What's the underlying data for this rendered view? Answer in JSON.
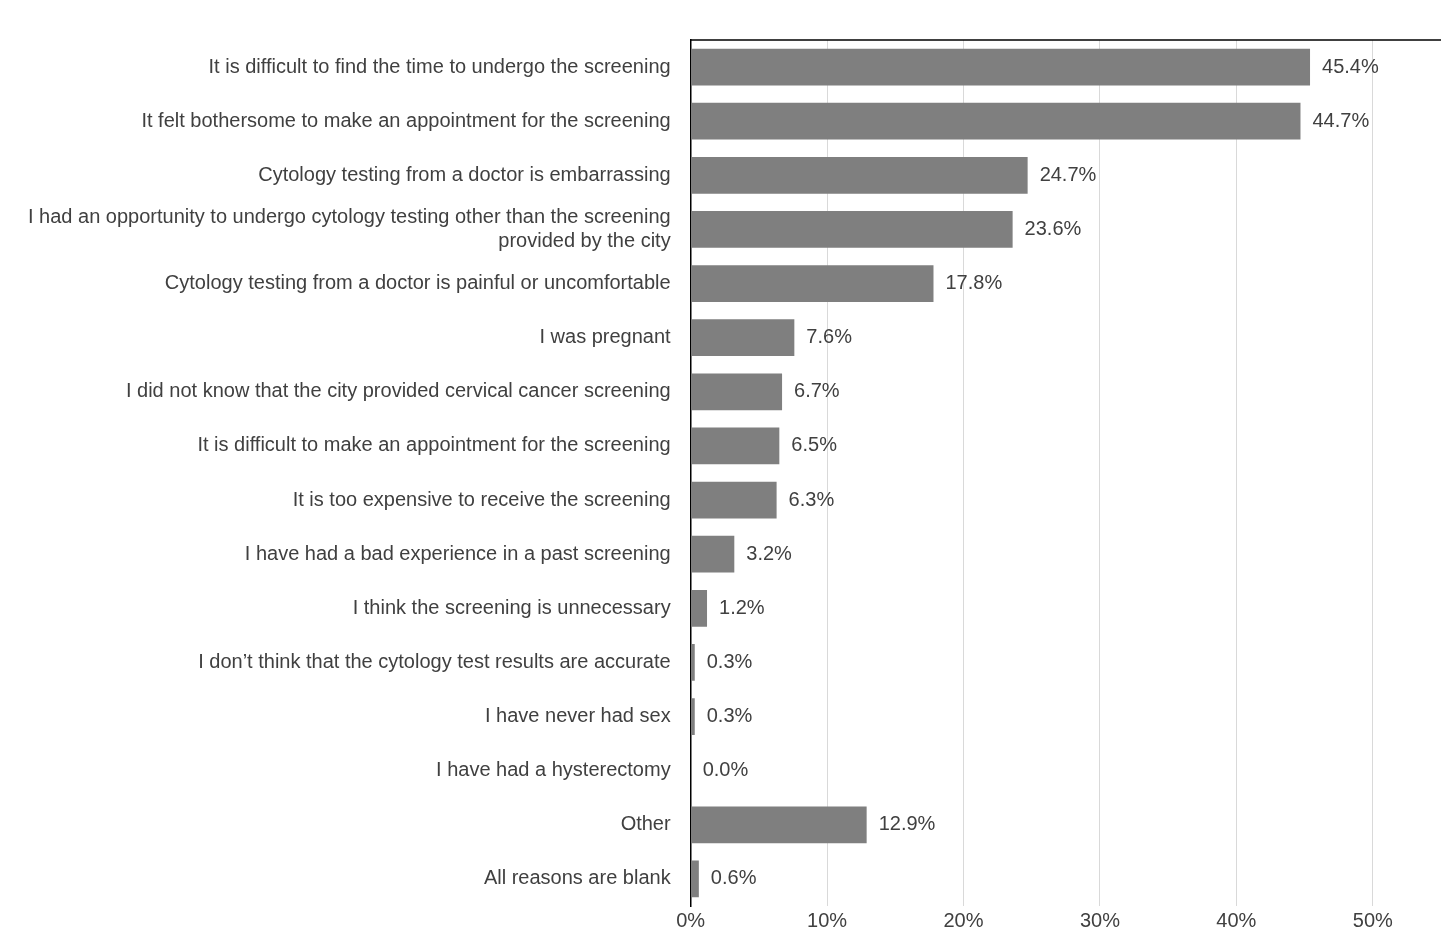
{
  "chart_data": {
    "type": "bar",
    "orientation": "horizontal",
    "categories": [
      "It is difficult to find the time to undergo the screening",
      "It felt bothersome to make an appointment for the screening",
      "Cytology testing from a doctor is embarrassing",
      "I had an opportunity to undergo cytology testing other than the screening provided by the city",
      "Cytology testing from a doctor is painful or uncomfortable",
      "I was pregnant",
      "I did not know that the city provided cervical cancer screening",
      "It is difficult to make an appointment for the screening",
      "It is too expensive to receive the screening",
      "I have had a bad experience in a past screening",
      "I think the screening is unnecessary",
      "I don’t think that the cytology test results are accurate",
      "I have never had sex",
      "I have had a hysterectomy",
      "Other",
      "All reasons are blank"
    ],
    "values": [
      45.4,
      44.7,
      24.7,
      23.6,
      17.8,
      7.6,
      6.7,
      6.5,
      6.3,
      3.2,
      1.2,
      0.3,
      0.3,
      0.0,
      12.9,
      0.6
    ],
    "value_labels": [
      "45.4%",
      "44.7%",
      "24.7%",
      "23.6%",
      "17.8%",
      "7.6%",
      "6.7%",
      "6.5%",
      "6.3%",
      "3.2%",
      "1.2%",
      "0.3%",
      "0.3%",
      "0.0%",
      "12.9%",
      "0.6%"
    ],
    "color": "#7f7f7f",
    "xlim": [
      0,
      55
    ],
    "xticks": [
      {
        "value": 0,
        "label": "0%"
      },
      {
        "value": 10,
        "label": "10%"
      },
      {
        "value": 20,
        "label": "20%"
      },
      {
        "value": 30,
        "label": "30%"
      },
      {
        "value": 40,
        "label": "40%"
      },
      {
        "value": 50,
        "label": "50%"
      }
    ],
    "grid": "x",
    "legend": false
  }
}
